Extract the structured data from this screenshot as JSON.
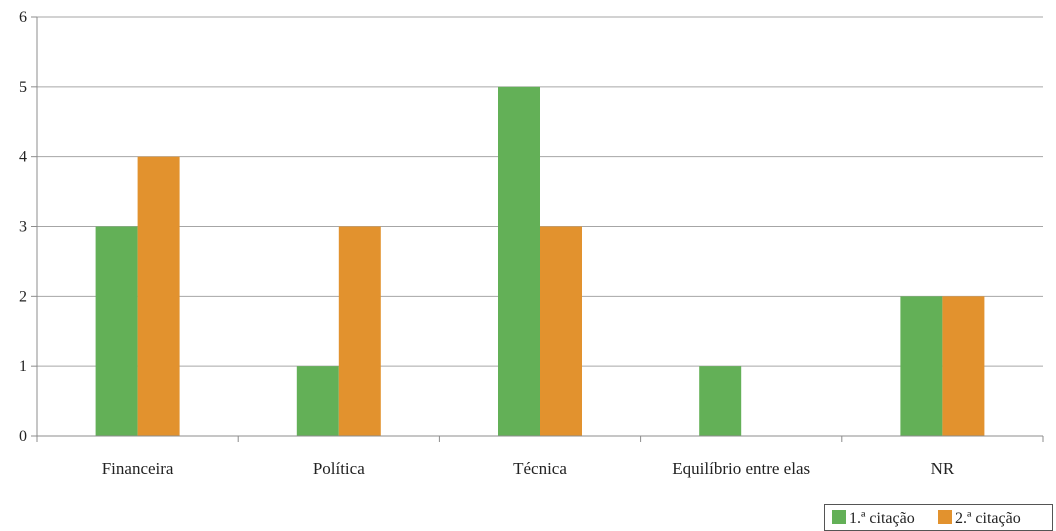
{
  "chart_data": {
    "type": "bar",
    "title": "",
    "xlabel": "",
    "ylabel": "",
    "ylim": [
      0,
      6
    ],
    "yticks": [
      0,
      1,
      2,
      3,
      4,
      5,
      6
    ],
    "grid": true,
    "legend_position": "bottom-right",
    "categories": [
      "Financeira",
      "Política",
      "Técnica",
      "Equilíbrio entre elas",
      "NR"
    ],
    "series": [
      {
        "name": "1.ª citação",
        "color": "#63b057",
        "values": [
          3,
          1,
          5,
          1,
          2
        ]
      },
      {
        "name": "2.ª citação",
        "color": "#e2922e",
        "values": [
          4,
          3,
          3,
          0,
          2
        ]
      }
    ]
  }
}
